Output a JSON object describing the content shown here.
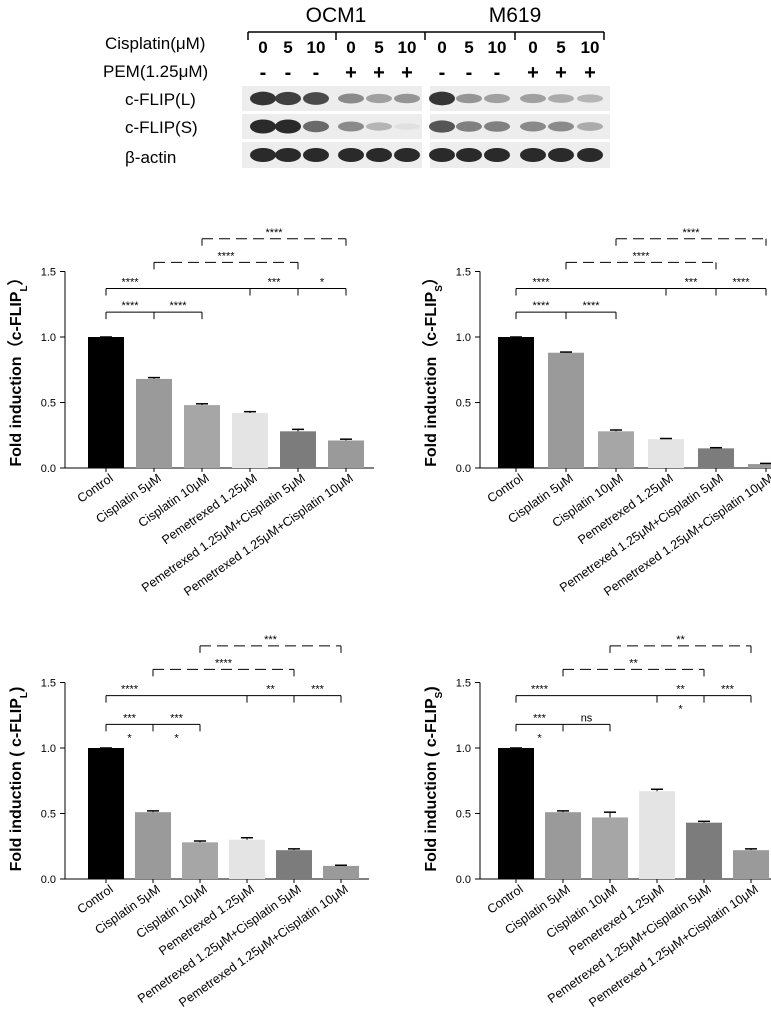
{
  "blot": {
    "cell_lines": [
      "OCM1",
      "M619"
    ],
    "cisplatin_label": "Cisplatin(μM)",
    "cisplatin_values": [
      "0",
      "5",
      "10",
      "0",
      "5",
      "10",
      "0",
      "5",
      "10",
      "0",
      "5",
      "10"
    ],
    "pem_label": "PEM(1.25μM)",
    "pem_values": [
      "-",
      "-",
      "-",
      "+",
      "+",
      "+",
      "-",
      "-",
      "-",
      "+",
      "+",
      "+"
    ],
    "rows": [
      {
        "label": "c-FLIP(L)",
        "intensity": [
          0.85,
          0.8,
          0.75,
          0.45,
          0.35,
          0.4,
          0.85,
          0.4,
          0.35,
          0.35,
          0.3,
          0.25
        ]
      },
      {
        "label": "c-FLIP(S)",
        "intensity": [
          0.9,
          0.9,
          0.6,
          0.45,
          0.25,
          0.05,
          0.7,
          0.5,
          0.5,
          0.45,
          0.45,
          0.3
        ]
      },
      {
        "label": "β-actin",
        "intensity": [
          0.9,
          0.9,
          0.9,
          0.9,
          0.9,
          0.9,
          0.9,
          0.9,
          0.9,
          0.9,
          0.9,
          0.9
        ]
      }
    ]
  },
  "chart_data": [
    {
      "type": "bar",
      "ylabel": "Fold induction（c-FLIP",
      "ylabel_sub": "L",
      "ylabel_end": "）",
      "ylim": [
        0,
        1.5
      ],
      "yticks": [
        "0.0",
        "0.5",
        "1.0",
        "1.5"
      ],
      "categories": [
        "Control",
        "Cisplatin 5μM",
        "Cisplatin 10μM",
        "Pemetrexed 1.25μM",
        "Pemetrexed 1.25μM+Cisplatin 5μM",
        "Pemetrexed 1.25μM+Cisplatin 10μM"
      ],
      "values": [
        1.0,
        0.68,
        0.48,
        0.42,
        0.28,
        0.21
      ],
      "errors": [
        0.0,
        0.01,
        0.01,
        0.01,
        0.015,
        0.01
      ],
      "colors": [
        "#000000",
        "#9a9a9a",
        "#a6a6a6",
        "#e4e4e4",
        "#7c7c7c",
        "#9a9a9a"
      ],
      "brackets": [
        {
          "from": 2,
          "to": 5,
          "level": 1.75,
          "style": "dashed",
          "label": "****",
          "tick_at": []
        },
        {
          "from": 1,
          "to": 4,
          "level": 1.57,
          "style": "dashed",
          "label": "****",
          "tick_at": []
        },
        {
          "from": 0,
          "to": 5,
          "level": 1.37,
          "style": "solid",
          "label": "****",
          "tick_at": [
            3,
            4
          ]
        },
        {
          "from": 0,
          "to": 2,
          "level": 1.19,
          "style": "solid",
          "label": "****",
          "tick_at": [
            1
          ]
        }
      ],
      "segment_labels": [
        {
          "x": 3.5,
          "level": 1.37,
          "label": "***"
        },
        {
          "x": 4.5,
          "level": 1.37,
          "label": "*"
        },
        {
          "x": 1.5,
          "level": 1.19,
          "label": "****"
        }
      ],
      "below_labels": []
    },
    {
      "type": "bar",
      "ylabel": "Fold induction（c-FLIP",
      "ylabel_sub": "S",
      "ylabel_end": "）",
      "ylim": [
        0,
        1.5
      ],
      "yticks": [
        "0.0",
        "0.5",
        "1.0",
        "1.5"
      ],
      "categories": [
        "Control",
        "Cisplatin 5μM",
        "Cisplatin 10μM",
        "Pemetrexed 1.25μM",
        "Pemetrexed 1.25μM+Cisplatin 5μM",
        "Pemetrexed 1.25μM+Cisplatin 10μM"
      ],
      "values": [
        1.0,
        0.88,
        0.28,
        0.22,
        0.15,
        0.03
      ],
      "errors": [
        0.0,
        0.005,
        0.01,
        0.005,
        0.005,
        0.005
      ],
      "colors": [
        "#000000",
        "#9a9a9a",
        "#a6a6a6",
        "#e4e4e4",
        "#7c7c7c",
        "#9a9a9a"
      ],
      "brackets": [
        {
          "from": 2,
          "to": 5,
          "level": 1.75,
          "style": "dashed",
          "label": "****",
          "tick_at": []
        },
        {
          "from": 1,
          "to": 4,
          "level": 1.57,
          "style": "dashed",
          "label": "****",
          "tick_at": []
        },
        {
          "from": 0,
          "to": 5,
          "level": 1.37,
          "style": "solid",
          "label": "****",
          "tick_at": [
            3,
            4
          ]
        },
        {
          "from": 0,
          "to": 2,
          "level": 1.19,
          "style": "solid",
          "label": "****",
          "tick_at": [
            1
          ]
        }
      ],
      "segment_labels": [
        {
          "x": 3.5,
          "level": 1.37,
          "label": "***"
        },
        {
          "x": 4.5,
          "level": 1.37,
          "label": "****"
        },
        {
          "x": 1.5,
          "level": 1.19,
          "label": "****"
        }
      ],
      "below_labels": []
    },
    {
      "type": "bar",
      "ylabel": "Fold induction ( c-FLIP",
      "ylabel_sub": "L",
      "ylabel_end": ")",
      "ylim": [
        0,
        1.5
      ],
      "yticks": [
        "0.0",
        "0.5",
        "1.0",
        "1.5"
      ],
      "categories": [
        "Control",
        "Cisplatin 5μM",
        "Cisplatin 10μM",
        "Pemetrexed 1.25μM",
        "Pemetrexed 1.25μM+Cisplatin 5μM",
        "Pemetrexed 1.25μM+Cisplatin 10μM"
      ],
      "values": [
        1.0,
        0.51,
        0.28,
        0.3,
        0.22,
        0.1
      ],
      "errors": [
        0.0,
        0.01,
        0.01,
        0.015,
        0.01,
        0.005
      ],
      "colors": [
        "#000000",
        "#9a9a9a",
        "#a6a6a6",
        "#e4e4e4",
        "#7c7c7c",
        "#9a9a9a"
      ],
      "brackets": [
        {
          "from": 2,
          "to": 5,
          "level": 1.78,
          "style": "dashed",
          "label": "***",
          "tick_at": []
        },
        {
          "from": 1,
          "to": 4,
          "level": 1.6,
          "style": "dashed",
          "label": "****",
          "tick_at": []
        },
        {
          "from": 0,
          "to": 5,
          "level": 1.4,
          "style": "solid",
          "label": "****",
          "tick_at": [
            3,
            4
          ]
        },
        {
          "from": 0,
          "to": 2,
          "level": 1.18,
          "style": "solid",
          "label": "***",
          "tick_at": [
            1
          ]
        }
      ],
      "segment_labels": [
        {
          "x": 3.5,
          "level": 1.4,
          "label": "**"
        },
        {
          "x": 4.5,
          "level": 1.4,
          "label": "***"
        },
        {
          "x": 1.5,
          "level": 1.18,
          "label": "***"
        }
      ],
      "below_labels": [
        {
          "x": 0.5,
          "level": 1.18,
          "label": "*"
        },
        {
          "x": 1.5,
          "level": 1.18,
          "label": "*"
        }
      ]
    },
    {
      "type": "bar",
      "ylabel": "Fold induction ( c-FLIP",
      "ylabel_sub": "S",
      "ylabel_end": ")",
      "ylim": [
        0,
        1.5
      ],
      "yticks": [
        "0.0",
        "0.5",
        "1.0",
        "1.5"
      ],
      "categories": [
        "Control",
        "Cisplatin 5μM",
        "Cisplatin 10μM",
        "Pemetrexed 1.25μM",
        "Pemetrexed 1.25μM+Cisplatin 5μM",
        "Pemetrexed 1.25μM+Cisplatin 10μM"
      ],
      "values": [
        1.0,
        0.51,
        0.47,
        0.67,
        0.43,
        0.22
      ],
      "errors": [
        0.0,
        0.01,
        0.04,
        0.015,
        0.01,
        0.01
      ],
      "colors": [
        "#000000",
        "#9a9a9a",
        "#a6a6a6",
        "#e4e4e4",
        "#7c7c7c",
        "#9a9a9a"
      ],
      "brackets": [
        {
          "from": 2,
          "to": 5,
          "level": 1.78,
          "style": "dashed",
          "label": "**",
          "tick_at": []
        },
        {
          "from": 1,
          "to": 4,
          "level": 1.6,
          "style": "dashed",
          "label": "**",
          "tick_at": []
        },
        {
          "from": 0,
          "to": 5,
          "level": 1.4,
          "style": "solid",
          "label": "****",
          "tick_at": [
            3,
            4
          ]
        },
        {
          "from": 0,
          "to": 2,
          "level": 1.18,
          "style": "solid",
          "label": "***",
          "tick_at": [
            1
          ]
        }
      ],
      "segment_labels": [
        {
          "x": 3.5,
          "level": 1.4,
          "label": "**"
        },
        {
          "x": 4.5,
          "level": 1.4,
          "label": "***"
        },
        {
          "x": 1.5,
          "level": 1.18,
          "label": "ns"
        }
      ],
      "below_labels": [
        {
          "x": 0.5,
          "level": 1.18,
          "label": "*"
        },
        {
          "x": 3.5,
          "level": 1.4,
          "label": "*"
        }
      ]
    }
  ]
}
